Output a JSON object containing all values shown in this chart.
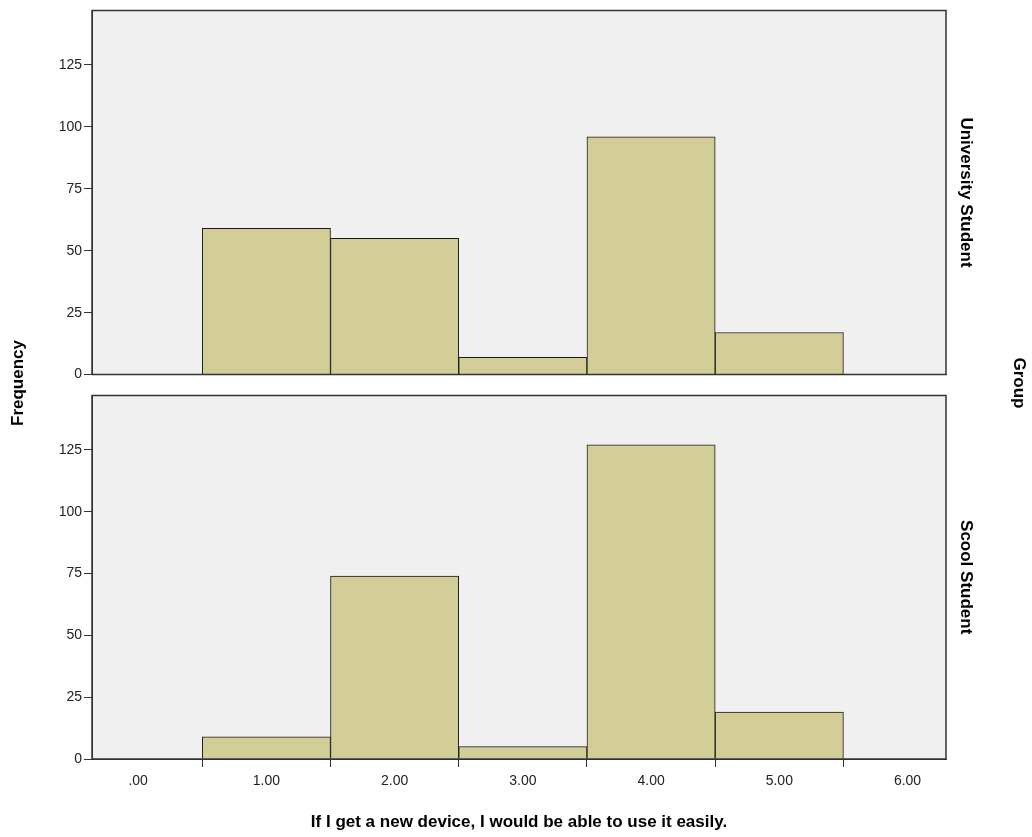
{
  "chart_data": [
    {
      "type": "histogram",
      "ylabel": "Frequency",
      "y2label": "University Student",
      "annotations": [
        "Group"
      ],
      "bins": [
        0.5,
        1.5,
        2.5,
        3.5,
        4.5,
        5.5
      ],
      "values": [
        59,
        55,
        7,
        96,
        17
      ],
      "color": "#d3ce97",
      "xlim": [
        -0.36,
        6.3
      ],
      "ylim": [
        0,
        147
      ],
      "yticks": [
        0,
        25,
        50,
        75,
        100,
        125
      ],
      "tick_labels": "y"
    },
    {
      "type": "histogram",
      "xlabel": "If I get a new device, I would be able to use it easily.",
      "y2label": "Scool Student",
      "bins": [
        0.5,
        1.5,
        2.5,
        3.5,
        4.5,
        5.5
      ],
      "values": [
        9,
        74,
        5,
        127,
        19
      ],
      "color": "#d3ce97",
      "xlim": [
        -0.36,
        6.3
      ],
      "ylim": [
        0,
        147
      ],
      "yticks": [
        0,
        25,
        50,
        75,
        100,
        125
      ],
      "xticks": [
        {
          "value": 0,
          "label": ".00"
        },
        {
          "value": 1,
          "label": "1.00"
        },
        {
          "value": 2,
          "label": "2.00"
        },
        {
          "value": 3,
          "label": "3.00"
        },
        {
          "value": 4,
          "label": "4.00"
        },
        {
          "value": 5,
          "label": "5.00"
        },
        {
          "value": 6,
          "label": "6.00"
        }
      ]
    }
  ]
}
